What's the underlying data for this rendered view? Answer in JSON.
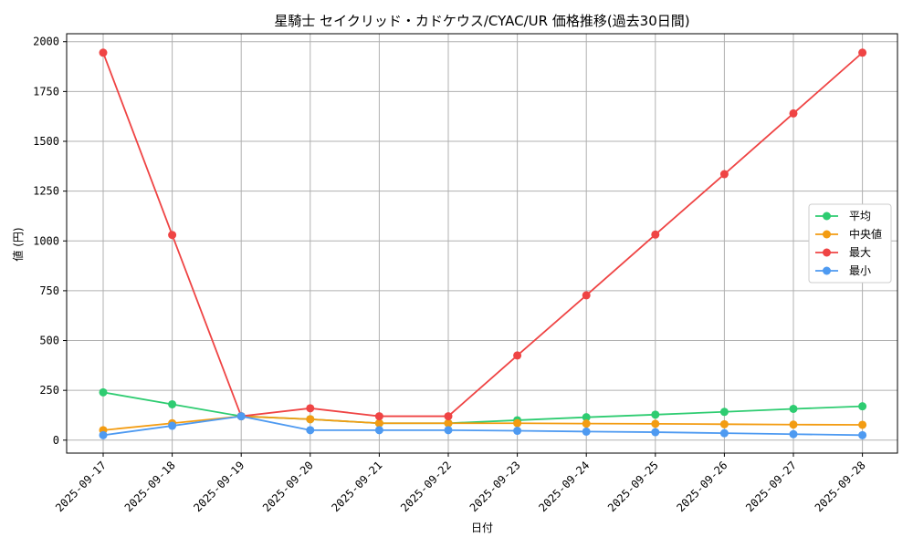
{
  "chart_data": {
    "type": "line",
    "title": "星騎士 セイクリッド・カドケウス/CYAC/UR 価格推移(過去30日間)",
    "xlabel": "日付",
    "ylabel": "値 (円)",
    "categories": [
      "2025-09-17",
      "2025-09-18",
      "2025-09-19",
      "2025-09-20",
      "2025-09-21",
      "2025-09-22",
      "2025-09-23",
      "2025-09-24",
      "2025-09-25",
      "2025-09-26",
      "2025-09-27",
      "2025-09-28"
    ],
    "ylim": [
      -65,
      2040
    ],
    "yticks": [
      0,
      250,
      500,
      750,
      1000,
      1250,
      1500,
      1750,
      2000
    ],
    "grid": true,
    "legend_position": "right",
    "series": [
      {
        "name": "平均",
        "color": "#2ecc71",
        "values": [
          240,
          180,
          120,
          105,
          85,
          85,
          100,
          115,
          128,
          142,
          157,
          170
        ]
      },
      {
        "name": "中央値",
        "color": "#f39c12",
        "values": [
          50,
          85,
          120,
          105,
          85,
          85,
          85,
          83,
          82,
          80,
          78,
          77
        ]
      },
      {
        "name": "最大",
        "color": "#ef4444",
        "values": [
          1945,
          1030,
          120,
          160,
          120,
          120,
          425,
          727,
          1032,
          1335,
          1640,
          1945
        ]
      },
      {
        "name": "最小",
        "color": "#4e9af1",
        "values": [
          25,
          72,
          120,
          50,
          50,
          50,
          47,
          43,
          40,
          35,
          30,
          25
        ]
      }
    ]
  }
}
